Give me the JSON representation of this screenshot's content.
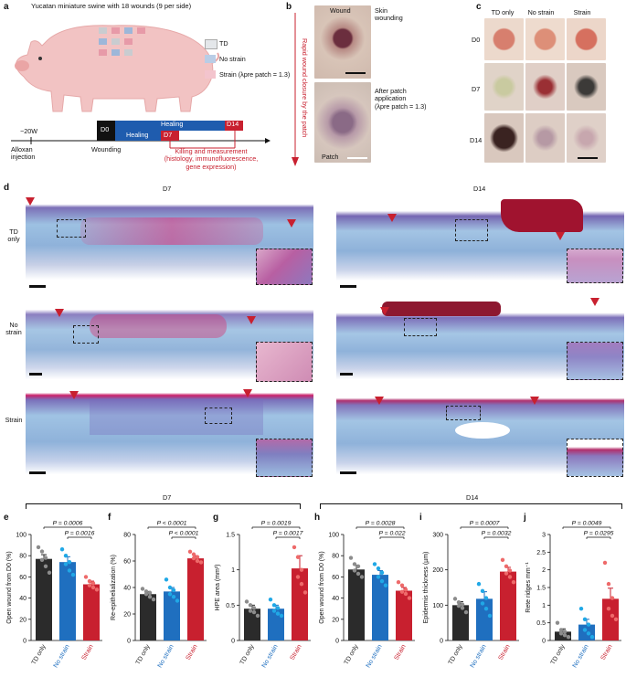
{
  "panel_labels": {
    "a": "a",
    "b": "b",
    "c": "c",
    "d": "d",
    "e": "e",
    "f": "f",
    "g": "g",
    "h": "h",
    "i": "i",
    "j": "j"
  },
  "panel_a": {
    "title": "Yucatan miniature swine with 18 wounds (9 per side)",
    "legend": [
      {
        "label": "TD",
        "color": "#e4e7ea"
      },
      {
        "label": "No strain",
        "color": "#b9cde6"
      },
      {
        "label": "Strain (λpre patch = 1.3)",
        "color": "#f3c4cd"
      }
    ],
    "timeline": {
      "start": "−20W",
      "d0": "D0",
      "d7": "D7",
      "d14": "D14",
      "healing_long": "Healing",
      "healing_short": "Healing",
      "alloxan": "Alloxan\ninjection",
      "wounding": "Wounding",
      "killing": "Killing and measurement\n(histology, immunofluorescence,\ngene expression)"
    }
  },
  "panel_b": {
    "wound_label": "Wound",
    "skin_label": "Skin\nwounding",
    "after_label": "After patch\napplication\n(λpre patch = 1.3)",
    "patch_label": "Patch",
    "side_label": "Rapid wound closure by the patch"
  },
  "panel_c": {
    "cols": [
      "TD only",
      "No strain",
      "Strain"
    ],
    "rows": [
      "D0",
      "D7",
      "D14"
    ]
  },
  "panel_d": {
    "col_d7": "D7",
    "col_d14": "D14",
    "rows": [
      "TD\nonly",
      "No\nstrain",
      "Strain"
    ]
  },
  "group_headers": {
    "d7": "D7",
    "d14": "D14"
  },
  "colors": {
    "td": "#2b2b2b",
    "no_strain": "#1f6fbf",
    "strain": "#c8202f",
    "dot_td": "#8c8c8c",
    "dot_no": "#20a8e6",
    "dot_strain": "#ee6a6a"
  },
  "chart_data": [
    {
      "type": "bar",
      "panel": "e",
      "ylabel": "Open wound from D0 (%)",
      "ylim": [
        0,
        100
      ],
      "yticks": [
        0,
        20,
        40,
        60,
        80,
        100
      ],
      "categories": [
        "TD only",
        "No strain",
        "Strain"
      ],
      "values": [
        77,
        74,
        53
      ],
      "errors": [
        4,
        5,
        3
      ],
      "points": [
        [
          88,
          84,
          78,
          76,
          70,
          64
        ],
        [
          86,
          80,
          74,
          72,
          66,
          62
        ],
        [
          60,
          56,
          54,
          52,
          50,
          48
        ]
      ],
      "pvals": [
        {
          "text": "P = 0.0006",
          "from": 0,
          "to": 2
        },
        {
          "text": "P = 0.0016",
          "from": 1,
          "to": 2
        }
      ]
    },
    {
      "type": "bar",
      "panel": "f",
      "ylabel": "Re-epithelialization (%)",
      "ylim": [
        0,
        80
      ],
      "yticks": [
        0,
        20,
        40,
        60,
        80
      ],
      "categories": [
        "TD only",
        "No strain",
        "Strain"
      ],
      "values": [
        35,
        37,
        62
      ],
      "errors": [
        2,
        3,
        2
      ],
      "points": [
        [
          39,
          37,
          36,
          35,
          33,
          31
        ],
        [
          46,
          40,
          38,
          35,
          33,
          30
        ],
        [
          67,
          65,
          63,
          62,
          60,
          59
        ]
      ],
      "pvals": [
        {
          "text": "P < 0.0001",
          "from": 0,
          "to": 2
        },
        {
          "text": "P < 0.0001",
          "from": 1,
          "to": 2
        }
      ]
    },
    {
      "type": "bar",
      "panel": "g",
      "ylabel": "HPE area (mm²)",
      "ylim": [
        0,
        1.5
      ],
      "yticks": [
        0,
        0.5,
        1.0,
        1.5
      ],
      "categories": [
        "TD only",
        "No strain",
        "Strain"
      ],
      "values": [
        0.45,
        0.45,
        1.02
      ],
      "errors": [
        0.05,
        0.05,
        0.18
      ],
      "points": [
        [
          0.55,
          0.5,
          0.46,
          0.42,
          0.4,
          0.35
        ],
        [
          0.58,
          0.5,
          0.46,
          0.42,
          0.38,
          0.35
        ],
        [
          1.32,
          1.18,
          1.0,
          0.9,
          0.8,
          0.68
        ]
      ],
      "pvals": [
        {
          "text": "P = 0.0019",
          "from": 0,
          "to": 2
        },
        {
          "text": "P = 0.0017",
          "from": 1,
          "to": 2
        }
      ]
    },
    {
      "type": "bar",
      "panel": "h",
      "ylabel": "Open wound from D0 (%)",
      "ylim": [
        0,
        100
      ],
      "yticks": [
        0,
        20,
        40,
        60,
        80,
        100
      ],
      "categories": [
        "TD only",
        "No strain",
        "Strain"
      ],
      "values": [
        67,
        62,
        47
      ],
      "errors": [
        4,
        4,
        3
      ],
      "points": [
        [
          78,
          72,
          70,
          66,
          63,
          60
        ],
        [
          72,
          68,
          64,
          60,
          56,
          52
        ],
        [
          55,
          52,
          48,
          46,
          44,
          40
        ]
      ],
      "pvals": [
        {
          "text": "P = 0.0028",
          "from": 0,
          "to": 2
        },
        {
          "text": "P = 0.022",
          "from": 1,
          "to": 2
        }
      ]
    },
    {
      "type": "bar",
      "panel": "i",
      "ylabel": "Epidermis thickness (µm)",
      "ylim": [
        0,
        300
      ],
      "yticks": [
        0,
        100,
        200,
        300
      ],
      "categories": [
        "TD only",
        "No strain",
        "Strain"
      ],
      "values": [
        100,
        118,
        195
      ],
      "errors": [
        10,
        20,
        12
      ],
      "points": [
        [
          118,
          108,
          102,
          98,
          92,
          80
        ],
        [
          160,
          140,
          120,
          105,
          90,
          70
        ],
        [
          228,
          210,
          198,
          190,
          180,
          165
        ]
      ],
      "pvals": [
        {
          "text": "P = 0.0007",
          "from": 0,
          "to": 2
        },
        {
          "text": "P = 0.0032",
          "from": 1,
          "to": 2
        }
      ]
    },
    {
      "type": "bar",
      "panel": "j",
      "ylabel": "Rete ridges mm⁻¹",
      "ylim": [
        0,
        3.0
      ],
      "yticks": [
        0,
        0.5,
        1.0,
        1.5,
        2.0,
        2.5,
        3.0
      ],
      "categories": [
        "TD only",
        "No strain",
        "Strain"
      ],
      "values": [
        0.25,
        0.45,
        1.18
      ],
      "errors": [
        0.08,
        0.15,
        0.3
      ],
      "points": [
        [
          0.5,
          0.3,
          0.25,
          0.2,
          0.15,
          0.1
        ],
        [
          0.9,
          0.6,
          0.45,
          0.3,
          0.2,
          0.1
        ],
        [
          2.2,
          1.6,
          1.2,
          0.9,
          0.7,
          0.6
        ]
      ],
      "pvals": [
        {
          "text": "P = 0.0049",
          "from": 0,
          "to": 2
        },
        {
          "text": "P = 0.0295",
          "from": 1,
          "to": 2
        }
      ]
    }
  ]
}
